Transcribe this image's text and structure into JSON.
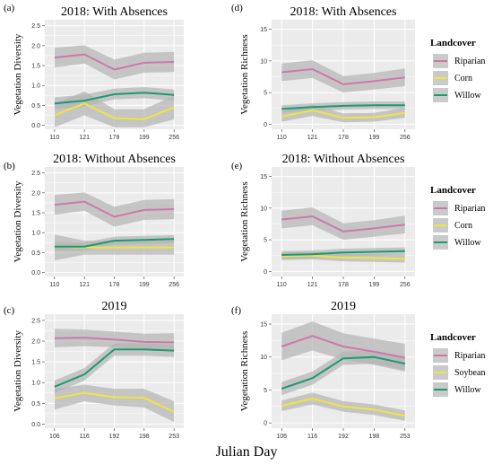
{
  "figure": {
    "xlabel": "Julian Day"
  },
  "colors": {
    "Riparian": "#cc79a7",
    "Corn": "#f0e442",
    "Soybean": "#f0e442",
    "Willow": "#1a9a72",
    "ribbon": "#b3b3b3",
    "panel_bg": "#ebebeb",
    "grid": "#ffffff"
  },
  "chart_data": [
    {
      "panel": "(a)",
      "type": "line",
      "title": "2018: With Absences",
      "ylabel": "Vegetation Diversity",
      "xlabel": "",
      "categories": [
        "110",
        "121",
        "178",
        "199",
        "256"
      ],
      "yticks": [
        0.0,
        0.5,
        1.0,
        1.5,
        2.0,
        2.5
      ],
      "ylim": [
        -0.1,
        2.65
      ],
      "series": [
        {
          "name": "Riparian",
          "values": [
            1.7,
            1.78,
            1.4,
            1.57,
            1.59
          ],
          "lower": [
            1.45,
            1.55,
            1.15,
            1.32,
            1.34
          ],
          "upper": [
            1.95,
            2.01,
            1.65,
            1.82,
            1.84
          ]
        },
        {
          "name": "Corn",
          "values": [
            0.25,
            0.55,
            0.18,
            0.15,
            0.45
          ],
          "lower": [
            -0.05,
            0.25,
            -0.05,
            -0.05,
            0.15
          ],
          "upper": [
            0.55,
            0.85,
            0.4,
            0.4,
            0.75
          ]
        },
        {
          "name": "Willow",
          "values": [
            0.55,
            0.62,
            0.78,
            0.82,
            0.76
          ],
          "lower": [
            0.4,
            0.48,
            0.65,
            0.68,
            0.62
          ],
          "upper": [
            0.7,
            0.77,
            0.92,
            0.96,
            0.9
          ]
        }
      ],
      "legend": "none"
    },
    {
      "panel": "(d)",
      "type": "line",
      "title": "2018: With Absences",
      "ylabel": "Vegetation Richness",
      "xlabel": "",
      "categories": [
        "110",
        "121",
        "178",
        "199",
        "256"
      ],
      "yticks": [
        0,
        5,
        10,
        15
      ],
      "ylim": [
        -0.8,
        16.5
      ],
      "series": [
        {
          "name": "Riparian",
          "values": [
            8.2,
            8.7,
            6.3,
            6.8,
            7.4
          ],
          "lower": [
            6.8,
            7.3,
            5.0,
            5.5,
            6.0
          ],
          "upper": [
            9.6,
            10.1,
            7.6,
            8.1,
            8.8
          ]
        },
        {
          "name": "Corn",
          "values": [
            1.2,
            2.2,
            1.0,
            1.1,
            1.8
          ],
          "lower": [
            0.4,
            1.3,
            0.3,
            0.4,
            1.0
          ],
          "upper": [
            2.0,
            3.1,
            1.7,
            1.8,
            2.6
          ]
        },
        {
          "name": "Willow",
          "values": [
            2.4,
            2.7,
            2.9,
            3.0,
            3.0
          ],
          "lower": [
            1.8,
            2.1,
            2.3,
            2.4,
            2.4
          ],
          "upper": [
            3.0,
            3.3,
            3.5,
            3.6,
            3.6
          ]
        }
      ],
      "legend": {
        "title": "Landcover",
        "entries": [
          "Riparian",
          "Corn",
          "Willow"
        ],
        "position": "right"
      }
    },
    {
      "panel": "(b)",
      "type": "line",
      "title": "2018: Without Absences",
      "ylabel": "Vegetation Diversity",
      "xlabel": "",
      "categories": [
        "110",
        "121",
        "178",
        "199",
        "256"
      ],
      "yticks": [
        0.0,
        0.5,
        1.0,
        1.5,
        2.0,
        2.5
      ],
      "ylim": [
        -0.1,
        2.65
      ],
      "series": [
        {
          "name": "Riparian",
          "values": [
            1.7,
            1.78,
            1.4,
            1.57,
            1.59
          ],
          "lower": [
            1.45,
            1.55,
            1.15,
            1.32,
            1.34
          ],
          "upper": [
            1.95,
            2.01,
            1.65,
            1.82,
            1.84
          ]
        },
        {
          "name": "Corn",
          "values": [
            0.65,
            0.63,
            0.63,
            0.63,
            0.63
          ],
          "lower": [
            0.3,
            0.45,
            0.45,
            0.45,
            0.45
          ],
          "upper": [
            0.95,
            0.8,
            0.8,
            0.8,
            0.8
          ]
        },
        {
          "name": "Willow",
          "values": [
            0.65,
            0.65,
            0.8,
            0.82,
            0.84
          ],
          "lower": [
            0.55,
            0.55,
            0.7,
            0.72,
            0.74
          ],
          "upper": [
            0.75,
            0.75,
            0.9,
            0.92,
            0.94
          ]
        }
      ],
      "legend": "none"
    },
    {
      "panel": "(e)",
      "type": "line",
      "title": "2018: Without Absences",
      "ylabel": "Vegetation Richness",
      "xlabel": "",
      "categories": [
        "110",
        "121",
        "178",
        "199",
        "256"
      ],
      "yticks": [
        0,
        5,
        10,
        15
      ],
      "ylim": [
        -0.8,
        16.5
      ],
      "series": [
        {
          "name": "Riparian",
          "values": [
            8.2,
            8.7,
            6.3,
            6.8,
            7.4
          ],
          "lower": [
            6.8,
            7.3,
            5.0,
            5.5,
            6.0
          ],
          "upper": [
            9.6,
            10.1,
            7.6,
            8.1,
            8.8
          ]
        },
        {
          "name": "Corn",
          "values": [
            2.4,
            2.5,
            2.2,
            2.1,
            2.0
          ],
          "lower": [
            1.8,
            1.9,
            1.6,
            1.5,
            1.4
          ],
          "upper": [
            3.0,
            3.1,
            2.8,
            2.7,
            2.6
          ]
        },
        {
          "name": "Willow",
          "values": [
            2.6,
            2.7,
            3.0,
            3.1,
            3.2
          ],
          "lower": [
            2.0,
            2.1,
            2.4,
            2.5,
            2.6
          ],
          "upper": [
            3.2,
            3.3,
            3.6,
            3.7,
            3.8
          ]
        }
      ],
      "legend": {
        "title": "Landcover",
        "entries": [
          "Riparian",
          "Corn",
          "Willow"
        ],
        "position": "right"
      }
    },
    {
      "panel": "(c)",
      "type": "line",
      "title": "2019",
      "ylabel": "Vegetation Diversity",
      "xlabel": "",
      "categories": [
        "106",
        "116",
        "192",
        "198",
        "253"
      ],
      "yticks": [
        0.0,
        0.5,
        1.0,
        1.5,
        2.0,
        2.5
      ],
      "ylim": [
        -0.1,
        2.65
      ],
      "series": [
        {
          "name": "Riparian",
          "values": [
            2.07,
            2.08,
            2.04,
            1.98,
            1.97
          ],
          "lower": [
            1.85,
            1.88,
            1.85,
            1.78,
            1.75
          ],
          "upper": [
            2.3,
            2.28,
            2.23,
            2.18,
            2.19
          ]
        },
        {
          "name": "Soybean",
          "values": [
            0.62,
            0.75,
            0.65,
            0.63,
            0.3
          ],
          "lower": [
            0.35,
            0.55,
            0.45,
            0.4,
            0.05
          ],
          "upper": [
            0.85,
            0.95,
            0.85,
            0.85,
            0.55
          ]
        },
        {
          "name": "Willow",
          "values": [
            0.9,
            1.2,
            1.8,
            1.8,
            1.77
          ],
          "lower": [
            0.75,
            1.05,
            1.65,
            1.65,
            1.62
          ],
          "upper": [
            1.05,
            1.35,
            1.95,
            1.95,
            1.92
          ]
        }
      ],
      "legend": "none"
    },
    {
      "panel": "(f)",
      "type": "line",
      "title": "2019",
      "ylabel": "Vegetation Richness",
      "xlabel": "",
      "categories": [
        "106",
        "116",
        "192",
        "198",
        "253"
      ],
      "yticks": [
        0,
        5,
        10,
        15
      ],
      "ylim": [
        -0.8,
        16.5
      ],
      "series": [
        {
          "name": "Riparian",
          "values": [
            11.6,
            13.2,
            11.6,
            10.8,
            9.9
          ],
          "lower": [
            9.5,
            11.0,
            9.6,
            8.8,
            7.8
          ],
          "upper": [
            13.7,
            15.4,
            13.6,
            12.8,
            12.0
          ]
        },
        {
          "name": "Soybean",
          "values": [
            2.6,
            3.7,
            2.5,
            2.0,
            1.1
          ],
          "lower": [
            1.8,
            2.8,
            1.7,
            1.2,
            0.3
          ],
          "upper": [
            3.4,
            4.6,
            3.3,
            2.8,
            1.9
          ]
        },
        {
          "name": "Willow",
          "values": [
            5.2,
            6.8,
            9.8,
            10.0,
            9.0
          ],
          "lower": [
            4.2,
            5.8,
            8.8,
            9.0,
            8.0
          ],
          "upper": [
            6.2,
            7.8,
            10.8,
            11.0,
            10.0
          ]
        }
      ],
      "legend": {
        "title": "Landcover",
        "entries": [
          "Riparian",
          "Soybean",
          "Willow"
        ],
        "position": "right"
      }
    }
  ]
}
